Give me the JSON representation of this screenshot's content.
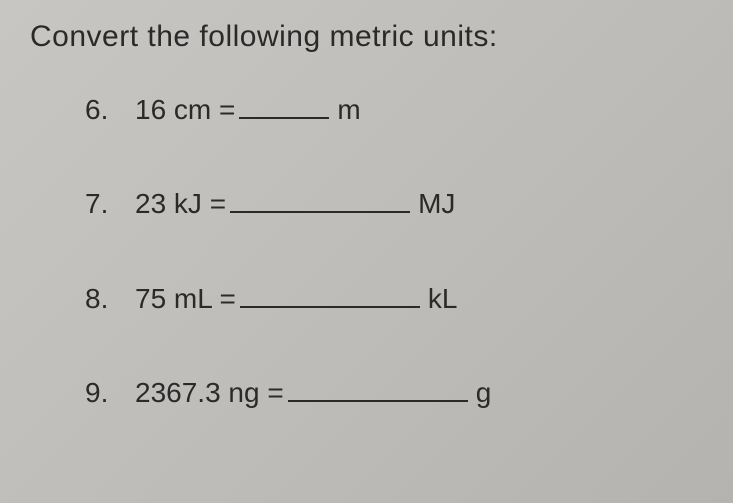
{
  "heading": "Convert the following metric units:",
  "problems": [
    {
      "number": "6.",
      "value": "16 cm =",
      "blank_width": 90,
      "unit": "m"
    },
    {
      "number": "7.",
      "value": "23 kJ =",
      "blank_width": 180,
      "unit": "MJ"
    },
    {
      "number": "8.",
      "value": "75 mL =",
      "blank_width": 180,
      "unit": "kL"
    },
    {
      "number": "9.",
      "value": "2367.3 ng =",
      "blank_width": 180,
      "unit": "g"
    }
  ],
  "colors": {
    "background_start": "#c8c6c3",
    "background_end": "#b5b3af",
    "text": "#2a2a2a",
    "underline": "#2a2a2a"
  },
  "typography": {
    "heading_fontsize": 30,
    "problem_fontsize": 28,
    "font_family": "Arial, Helvetica, sans-serif",
    "font_weight": 500
  }
}
